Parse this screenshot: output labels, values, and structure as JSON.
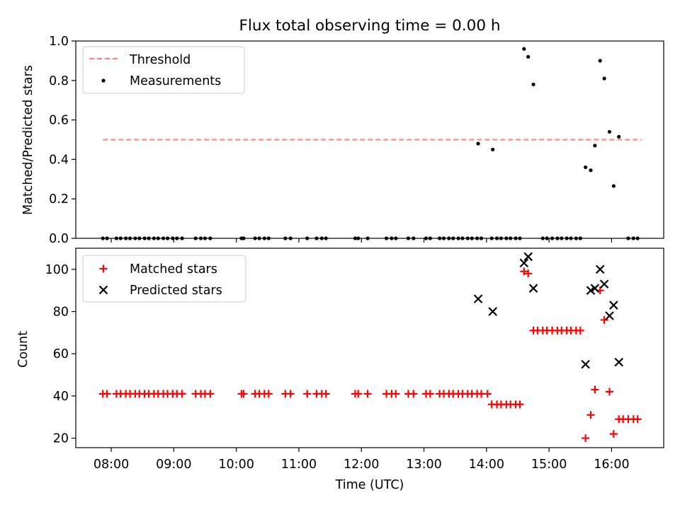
{
  "chart_data": [
    {
      "type": "scatter",
      "title": "Flux total observing time = 0.00 h",
      "ylabel": "Matched/Predicted stars",
      "xlim": [
        "07:26",
        "16:50"
      ],
      "ylim": [
        0,
        1.0
      ],
      "yticks": [
        "0.0",
        "0.2",
        "0.4",
        "0.6",
        "0.8",
        "1.0"
      ],
      "legend_position": "upper-left",
      "threshold": {
        "name": "Threshold",
        "color": "#ff7f7f",
        "style": "dashed",
        "y": 0.5,
        "x_start": "07:52",
        "x_end": "16:29"
      },
      "series": [
        {
          "name": "Measurements",
          "color": "#000000",
          "marker": "dot",
          "points": [
            [
              "07:52",
              0
            ],
            [
              "07:56",
              0
            ],
            [
              "08:05",
              0
            ],
            [
              "08:09",
              0
            ],
            [
              "08:14",
              0
            ],
            [
              "08:18",
              0
            ],
            [
              "08:23",
              0
            ],
            [
              "08:27",
              0
            ],
            [
              "08:32",
              0
            ],
            [
              "08:36",
              0
            ],
            [
              "08:41",
              0
            ],
            [
              "08:45",
              0
            ],
            [
              "08:50",
              0
            ],
            [
              "08:54",
              0
            ],
            [
              "08:59",
              0
            ],
            [
              "09:03",
              0
            ],
            [
              "09:08",
              0
            ],
            [
              "09:21",
              0
            ],
            [
              "09:26",
              0
            ],
            [
              "09:30",
              0
            ],
            [
              "09:35",
              0
            ],
            [
              "10:05",
              0
            ],
            [
              "10:07",
              0
            ],
            [
              "10:18",
              0
            ],
            [
              "10:22",
              0
            ],
            [
              "10:27",
              0
            ],
            [
              "10:31",
              0
            ],
            [
              "10:47",
              0
            ],
            [
              "10:52",
              0
            ],
            [
              "11:08",
              0
            ],
            [
              "11:17",
              0
            ],
            [
              "11:22",
              0
            ],
            [
              "11:26",
              0
            ],
            [
              "11:54",
              0
            ],
            [
              "11:57",
              0
            ],
            [
              "12:06",
              0
            ],
            [
              "12:24",
              0
            ],
            [
              "12:29",
              0
            ],
            [
              "12:33",
              0
            ],
            [
              "12:45",
              0
            ],
            [
              "12:50",
              0
            ],
            [
              "13:02",
              0
            ],
            [
              "13:06",
              0
            ],
            [
              "13:15",
              0
            ],
            [
              "13:19",
              0
            ],
            [
              "13:24",
              0
            ],
            [
              "13:28",
              0
            ],
            [
              "13:33",
              0
            ],
            [
              "13:37",
              0
            ],
            [
              "13:42",
              0
            ],
            [
              "13:46",
              0
            ],
            [
              "13:51",
              0
            ],
            [
              "13:55",
              0
            ],
            [
              "14:05",
              0
            ],
            [
              "14:10",
              0
            ],
            [
              "14:14",
              0
            ],
            [
              "14:19",
              0
            ],
            [
              "14:23",
              0
            ],
            [
              "14:28",
              0
            ],
            [
              "14:32",
              0
            ],
            [
              "14:54",
              0
            ],
            [
              "14:58",
              0
            ],
            [
              "15:03",
              0
            ],
            [
              "15:08",
              0
            ],
            [
              "15:12",
              0
            ],
            [
              "15:17",
              0
            ],
            [
              "15:21",
              0
            ],
            [
              "15:26",
              0
            ],
            [
              "15:30",
              0
            ],
            [
              "16:16",
              0
            ],
            [
              "16:21",
              0
            ],
            [
              "16:25",
              0
            ],
            [
              "13:52",
              0.48
            ],
            [
              "14:06",
              0.45
            ],
            [
              "14:36",
              0.96
            ],
            [
              "14:40",
              0.92
            ],
            [
              "14:45",
              0.78
            ],
            [
              "15:35",
              0.36
            ],
            [
              "15:40",
              0.345
            ],
            [
              "15:44",
              0.47
            ],
            [
              "15:49",
              0.9
            ],
            [
              "15:53",
              0.81
            ],
            [
              "15:58",
              0.54
            ],
            [
              "16:02",
              0.265
            ],
            [
              "16:07",
              0.515
            ]
          ]
        }
      ]
    },
    {
      "type": "scatter",
      "xlabel": "Time (UTC)",
      "ylabel": "Count",
      "xlim": [
        "07:26",
        "16:50"
      ],
      "ylim": [
        15.5,
        110
      ],
      "xticks": [
        "08:00",
        "09:00",
        "10:00",
        "11:00",
        "12:00",
        "13:00",
        "14:00",
        "15:00",
        "16:00"
      ],
      "yticks": [
        "20",
        "40",
        "60",
        "80",
        "100"
      ],
      "legend_position": "upper-left",
      "series": [
        {
          "name": "Matched stars",
          "color": "#ff0000",
          "marker": "plus",
          "points": [
            [
              "07:52",
              41
            ],
            [
              "07:56",
              41
            ],
            [
              "08:05",
              41
            ],
            [
              "08:09",
              41
            ],
            [
              "08:14",
              41
            ],
            [
              "08:18",
              41
            ],
            [
              "08:23",
              41
            ],
            [
              "08:27",
              41
            ],
            [
              "08:32",
              41
            ],
            [
              "08:36",
              41
            ],
            [
              "08:41",
              41
            ],
            [
              "08:45",
              41
            ],
            [
              "08:50",
              41
            ],
            [
              "08:54",
              41
            ],
            [
              "08:59",
              41
            ],
            [
              "09:03",
              41
            ],
            [
              "09:08",
              41
            ],
            [
              "09:21",
              41
            ],
            [
              "09:26",
              41
            ],
            [
              "09:30",
              41
            ],
            [
              "09:35",
              41
            ],
            [
              "10:05",
              41
            ],
            [
              "10:07",
              41
            ],
            [
              "10:18",
              41
            ],
            [
              "10:22",
              41
            ],
            [
              "10:27",
              41
            ],
            [
              "10:31",
              41
            ],
            [
              "10:47",
              41
            ],
            [
              "10:52",
              41
            ],
            [
              "11:08",
              41
            ],
            [
              "11:17",
              41
            ],
            [
              "11:22",
              41
            ],
            [
              "11:26",
              41
            ],
            [
              "11:54",
              41
            ],
            [
              "11:57",
              41
            ],
            [
              "12:06",
              41
            ],
            [
              "12:24",
              41
            ],
            [
              "12:29",
              41
            ],
            [
              "12:33",
              41
            ],
            [
              "12:45",
              41
            ],
            [
              "12:50",
              41
            ],
            [
              "13:02",
              41
            ],
            [
              "13:06",
              41
            ],
            [
              "13:15",
              41
            ],
            [
              "13:19",
              41
            ],
            [
              "13:24",
              41
            ],
            [
              "13:28",
              41
            ],
            [
              "13:33",
              41
            ],
            [
              "13:37",
              41
            ],
            [
              "13:42",
              41
            ],
            [
              "13:46",
              41
            ],
            [
              "13:51",
              41
            ],
            [
              "13:55",
              41
            ],
            [
              "14:01",
              41
            ],
            [
              "14:05",
              36
            ],
            [
              "14:10",
              36
            ],
            [
              "14:14",
              36
            ],
            [
              "14:19",
              36
            ],
            [
              "14:23",
              36
            ],
            [
              "14:28",
              36
            ],
            [
              "14:32",
              36
            ],
            [
              "14:36",
              99
            ],
            [
              "14:40",
              98
            ],
            [
              "14:45",
              71
            ],
            [
              "14:49",
              71
            ],
            [
              "14:54",
              71
            ],
            [
              "14:58",
              71
            ],
            [
              "15:03",
              71
            ],
            [
              "15:08",
              71
            ],
            [
              "15:12",
              71
            ],
            [
              "15:17",
              71
            ],
            [
              "15:21",
              71
            ],
            [
              "15:26",
              71
            ],
            [
              "15:30",
              71
            ],
            [
              "15:35",
              20
            ],
            [
              "15:40",
              31
            ],
            [
              "15:44",
              43
            ],
            [
              "15:49",
              90
            ],
            [
              "15:53",
              76
            ],
            [
              "15:58",
              42
            ],
            [
              "16:02",
              22
            ],
            [
              "16:07",
              29
            ],
            [
              "16:11",
              29
            ],
            [
              "16:16",
              29
            ],
            [
              "16:21",
              29
            ],
            [
              "16:25",
              29
            ]
          ]
        },
        {
          "name": "Predicted stars",
          "color": "#000000",
          "marker": "x",
          "points": [
            [
              "13:52",
              86
            ],
            [
              "14:06",
              80
            ],
            [
              "14:36",
              103
            ],
            [
              "14:40",
              106
            ],
            [
              "14:45",
              91
            ],
            [
              "15:35",
              55
            ],
            [
              "15:40",
              90
            ],
            [
              "15:44",
              91
            ],
            [
              "15:49",
              100
            ],
            [
              "15:53",
              93
            ],
            [
              "15:58",
              78
            ],
            [
              "16:02",
              83
            ],
            [
              "16:07",
              56
            ]
          ]
        }
      ]
    }
  ]
}
